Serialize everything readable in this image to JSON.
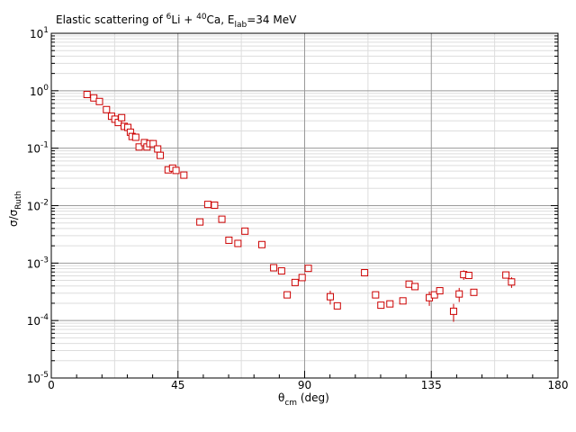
{
  "chart_data": {
    "type": "scatter",
    "title": {
      "prefix": "Elastic scattering of ",
      "li_mass": "6",
      "li": "Li + ",
      "ca_mass": "40",
      "ca": "Ca, E",
      "e_sub": "lab",
      "suffix": "=34 MeV"
    },
    "xlabel": {
      "main": "θ",
      "sub": "cm",
      "suffix": " (deg)"
    },
    "ylabel": {
      "main": "σ/σ",
      "sub": "Ruth"
    },
    "xlim": [
      0,
      180
    ],
    "ylim": [
      1e-05,
      10
    ],
    "yscale": "log",
    "grid": true,
    "x_ticks": [
      {
        "value": 0,
        "label": "0"
      },
      {
        "value": 45,
        "label": "45"
      },
      {
        "value": 90,
        "label": "90"
      },
      {
        "value": 135,
        "label": "135"
      },
      {
        "value": 180,
        "label": "180"
      }
    ],
    "y_ticks": [
      {
        "value": 10,
        "base": "10",
        "exp": "1"
      },
      {
        "value": 1,
        "base": "10",
        "exp": "0"
      },
      {
        "value": 0.1,
        "base": "10",
        "exp": "-1"
      },
      {
        "value": 0.01,
        "base": "10",
        "exp": "-2"
      },
      {
        "value": 0.001,
        "base": "10",
        "exp": "-3"
      },
      {
        "value": 0.0001,
        "base": "10",
        "exp": "-4"
      },
      {
        "value": 1e-05,
        "base": "10",
        "exp": "-5"
      }
    ],
    "marker_color": "#cc0000",
    "grid_major_color": "#999999",
    "grid_minor_color": "#dddddd",
    "points": [
      {
        "x": 12.7,
        "y": 0.86
      },
      {
        "x": 15.1,
        "y": 0.75
      },
      {
        "x": 17.1,
        "y": 0.65
      },
      {
        "x": 19.6,
        "y": 0.47
      },
      {
        "x": 21.4,
        "y": 0.36
      },
      {
        "x": 22.6,
        "y": 0.32
      },
      {
        "x": 23.8,
        "y": 0.28
      },
      {
        "x": 25.0,
        "y": 0.34
      },
      {
        "x": 25.9,
        "y": 0.24
      },
      {
        "x": 27.2,
        "y": 0.23
      },
      {
        "x": 28.1,
        "y": 0.19
      },
      {
        "x": 28.7,
        "y": 0.16
      },
      {
        "x": 30.0,
        "y": 0.155
      },
      {
        "x": 31.2,
        "y": 0.105
      },
      {
        "x": 33.1,
        "y": 0.125
      },
      {
        "x": 34.0,
        "y": 0.105
      },
      {
        "x": 35.0,
        "y": 0.12
      },
      {
        "x": 36.2,
        "y": 0.12
      },
      {
        "x": 37.8,
        "y": 0.097
      },
      {
        "x": 38.7,
        "y": 0.075
      },
      {
        "x": 41.5,
        "y": 0.042
      },
      {
        "x": 43.1,
        "y": 0.045
      },
      {
        "x": 44.3,
        "y": 0.041
      },
      {
        "x": 47.1,
        "y": 0.034
      },
      {
        "x": 52.8,
        "y": 0.0052
      },
      {
        "x": 55.6,
        "y": 0.0105
      },
      {
        "x": 58.0,
        "y": 0.0102
      },
      {
        "x": 60.6,
        "y": 0.0058
      },
      {
        "x": 63.1,
        "y": 0.0025
      },
      {
        "x": 66.3,
        "y": 0.0022
      },
      {
        "x": 68.8,
        "y": 0.0036
      },
      {
        "x": 74.8,
        "y": 0.0021
      },
      {
        "x": 79.0,
        "y": 0.00083
      },
      {
        "x": 81.8,
        "y": 0.00073
      },
      {
        "x": 83.8,
        "y": 0.00028
      },
      {
        "x": 86.6,
        "y": 0.00046
      },
      {
        "x": 89.1,
        "y": 0.00056
      },
      {
        "x": 91.3,
        "y": 0.00081
      },
      {
        "x": 99.1,
        "y": 0.00026,
        "err": 7e-05
      },
      {
        "x": 101.6,
        "y": 0.00018
      },
      {
        "x": 111.3,
        "y": 0.00068
      },
      {
        "x": 115.2,
        "y": 0.00028
      },
      {
        "x": 117.1,
        "y": 0.000185
      },
      {
        "x": 120.3,
        "y": 0.000195
      },
      {
        "x": 124.9,
        "y": 0.00022
      },
      {
        "x": 127.1,
        "y": 0.00043
      },
      {
        "x": 129.2,
        "y": 0.00039
      },
      {
        "x": 134.3,
        "y": 0.00025,
        "err": 7e-05
      },
      {
        "x": 136.1,
        "y": 0.00028
      },
      {
        "x": 138.0,
        "y": 0.00033
      },
      {
        "x": 142.9,
        "y": 0.000145,
        "err": 5e-05
      },
      {
        "x": 144.9,
        "y": 0.00029,
        "err": 8e-05
      },
      {
        "x": 146.5,
        "y": 0.00063,
        "err": 0.00012
      },
      {
        "x": 148.3,
        "y": 0.00061
      },
      {
        "x": 150.1,
        "y": 0.00031
      },
      {
        "x": 161.5,
        "y": 0.00062
      },
      {
        "x": 163.5,
        "y": 0.00047,
        "err": 0.0001
      }
    ]
  }
}
